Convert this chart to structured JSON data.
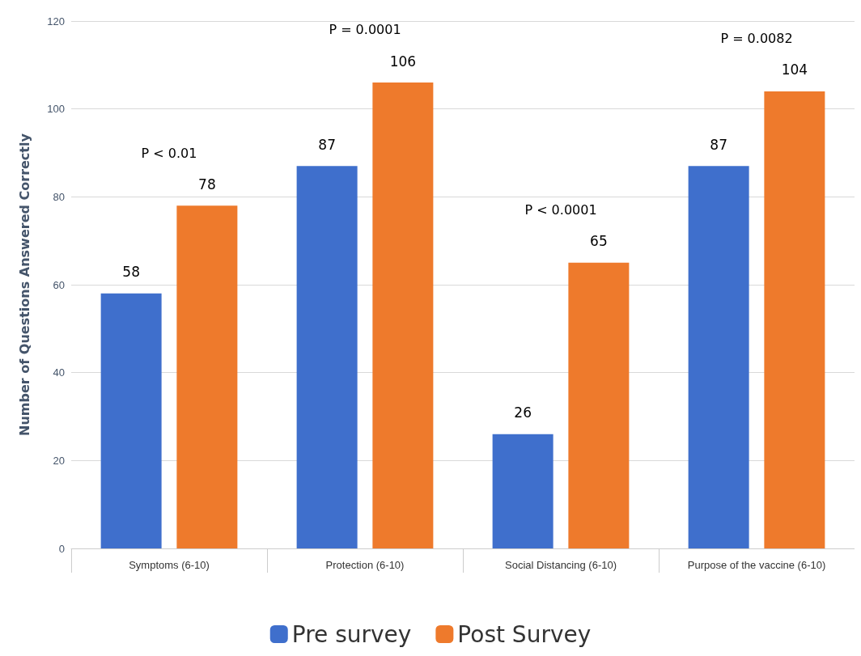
{
  "chart_data": {
    "type": "bar",
    "ylabel": "Number of Questions Answered Correctly",
    "categories": [
      "Symptoms (6-10)",
      "Protection (6-10)",
      "Social Distancing (6-10)",
      "Purpose of the vaccine (6-10)"
    ],
    "series": [
      {
        "name": "Pre survey",
        "color": "#3f6fcc",
        "values": [
          58,
          87,
          26,
          87
        ]
      },
      {
        "name": "Post Survey",
        "color": "#ee7a2c",
        "values": [
          78,
          106,
          65,
          104
        ]
      }
    ],
    "ylim": [
      0,
      120
    ],
    "yticks": [
      0,
      20,
      40,
      60,
      80,
      100,
      120
    ],
    "grid": "y",
    "legend": "bottom",
    "data_labels": true,
    "annotations": [
      "P < 0.01",
      "P = 0.0001",
      "P < 0.0001",
      "P = 0.0082"
    ]
  }
}
